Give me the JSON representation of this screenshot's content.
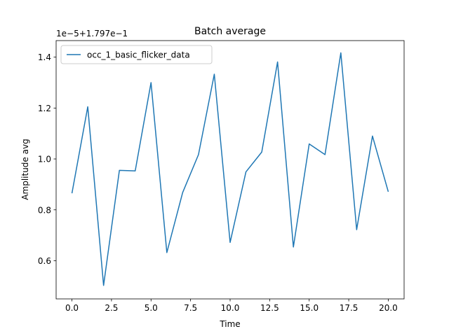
{
  "chart_data": {
    "type": "line",
    "title": "Batch average",
    "xlabel": "Time",
    "ylabel": "Amplitude avg",
    "offset_label": "1e−5+1.797e−1",
    "xlim": [
      -1.0,
      21.0
    ],
    "ylim": [
      0.45,
      1.465
    ],
    "x_ticks": [
      0,
      2.5,
      5,
      7.5,
      10,
      12.5,
      15,
      17.5,
      20
    ],
    "x_tick_labels": [
      "0.0",
      "2.5",
      "5.0",
      "7.5",
      "10.0",
      "12.5",
      "15.0",
      "17.5",
      "20.0"
    ],
    "y_ticks": [
      0.6,
      0.8,
      1.0,
      1.2,
      1.4
    ],
    "y_tick_labels": [
      "0.6",
      "0.8",
      "1.0",
      "1.2",
      "1.4"
    ],
    "grid": false,
    "legend_position": "top-left",
    "series": [
      {
        "name": "occ_1_basic_flicker_data",
        "color": "#1f77b4",
        "x": [
          0,
          1,
          2,
          3,
          4,
          5,
          6,
          7,
          8,
          9,
          10,
          11,
          12,
          13,
          14,
          15,
          16,
          17,
          18,
          19,
          20
        ],
        "values": [
          0.865,
          1.205,
          0.503,
          0.955,
          0.953,
          1.3,
          0.632,
          0.868,
          1.017,
          1.333,
          0.672,
          0.949,
          1.027,
          1.381,
          0.654,
          1.059,
          1.017,
          1.417,
          0.722,
          1.09,
          0.871
        ]
      }
    ]
  }
}
